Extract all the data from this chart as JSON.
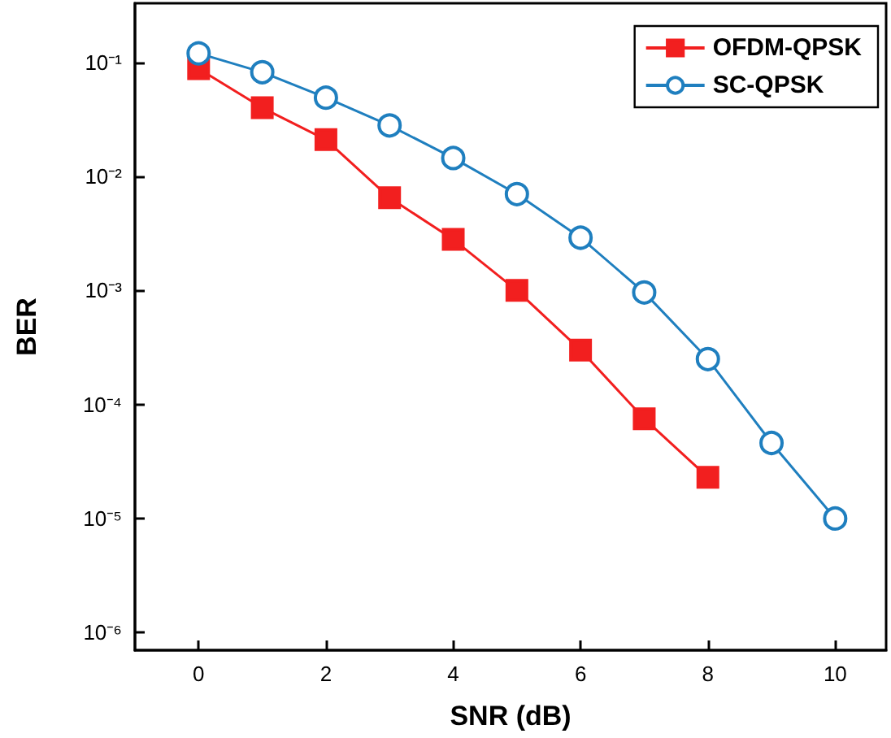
{
  "chart_data": {
    "type": "line",
    "xlabel": "SNR (dB)",
    "ylabel": "BER",
    "log": "y",
    "legend": "top right",
    "line_style": "solid",
    "xlim": [
      -1,
      10.8
    ],
    "xticks": [
      0,
      2,
      4,
      6,
      8,
      10
    ],
    "ylim": [
      7e-07,
      0.33
    ],
    "yticks": [
      {
        "value": 0.1,
        "label": "10⁻¹"
      },
      {
        "value": 0.01,
        "label": "10⁻²"
      },
      {
        "value": 0.001,
        "label": "10⁻³"
      },
      {
        "value": 0.0001,
        "label": "10⁻⁴"
      },
      {
        "value": 1e-05,
        "label": "10⁻⁵"
      },
      {
        "value": 1e-06,
        "label": "10⁻⁶"
      }
    ],
    "series": [
      {
        "name": "OFDM-QPSK",
        "color": "#f21f1f",
        "marker": "square",
        "x": [
          0,
          1,
          2,
          3,
          4,
          5,
          6,
          7,
          8
        ],
        "values": [
          0.088,
          0.04,
          0.021,
          0.0065,
          0.0028,
          0.001,
          0.0003,
          7.5e-05,
          2.3e-05
        ]
      },
      {
        "name": "SC-QPSK",
        "color": "#1f7fbf",
        "marker": "circle",
        "x": [
          0,
          1,
          2,
          3,
          4,
          5,
          6,
          7,
          8,
          9,
          10
        ],
        "values": [
          0.12,
          0.082,
          0.049,
          0.028,
          0.0145,
          0.007,
          0.0029,
          0.00096,
          0.00025,
          4.6e-05,
          1e-05
        ]
      }
    ]
  }
}
